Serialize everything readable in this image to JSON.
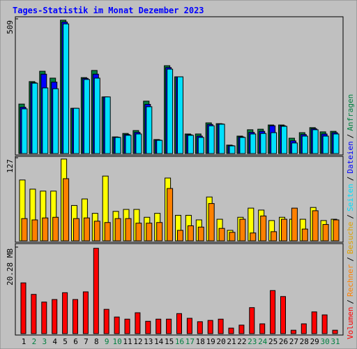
{
  "chart_data": [
    {
      "type": "bar",
      "title": "Tages-Statistik im Monat Dezember 2023",
      "categories": [
        "1",
        "2",
        "3",
        "4",
        "5",
        "6",
        "7",
        "8",
        "9",
        "10",
        "11",
        "12",
        "13",
        "14",
        "15",
        "16",
        "17",
        "18",
        "19",
        "20",
        "21",
        "22",
        "23",
        "24",
        "25",
        "26",
        "27",
        "28",
        "29",
        "30",
        "31"
      ],
      "category_colors": [
        "#000000",
        "#008040",
        "#008040",
        "#000000",
        "#000000",
        "#000000",
        "#000000",
        "#000000",
        "#008040",
        "#008040",
        "#000000",
        "#000000",
        "#000000",
        "#000000",
        "#000000",
        "#008040",
        "#008040",
        "#000000",
        "#000000",
        "#000000",
        "#000000",
        "#000000",
        "#008040",
        "#008040",
        "#000000",
        "#000000",
        "#000000",
        "#000000",
        "#000000",
        "#008040",
        "#008040"
      ],
      "ylim": [
        0,
        509
      ],
      "yticks": [
        509
      ],
      "series": [
        {
          "name": "Anfragen",
          "color": "#008040",
          "values": [
            187,
            272,
            311,
            285,
            504,
            171,
            287,
            314,
            214,
            63,
            76,
            87,
            198,
            53,
            332,
            290,
            74,
            74,
            116,
            113,
            32,
            66,
            90,
            92,
            108,
            108,
            58,
            79,
            98,
            82,
            84
          ]
        },
        {
          "name": "Dateien",
          "color": "#0000ff",
          "values": [
            175,
            268,
            300,
            270,
            497,
            171,
            284,
            300,
            214,
            62,
            72,
            80,
            186,
            51,
            325,
            290,
            71,
            66,
            110,
            112,
            30,
            63,
            80,
            84,
            105,
            105,
            48,
            72,
            94,
            74,
            79
          ]
        },
        {
          "name": "Seiten",
          "color": "#00e0ff",
          "values": [
            169,
            266,
            248,
            245,
            490,
            171,
            280,
            285,
            214,
            61,
            69,
            74,
            177,
            50,
            319,
            290,
            69,
            61,
            105,
            111,
            29,
            61,
            74,
            76,
            79,
            103,
            40,
            66,
            90,
            66,
            74
          ]
        }
      ]
    },
    {
      "type": "bar",
      "ylim": [
        0,
        127
      ],
      "yticks": [
        127
      ],
      "series": [
        {
          "name": "Besuche",
          "color": "#ffff00",
          "values": [
            93,
            79,
            76,
            76,
            125,
            54,
            64,
            42,
            99,
            45,
            48,
            48,
            36,
            42,
            96,
            39,
            39,
            32,
            67,
            33,
            16,
            36,
            50,
            47,
            31,
            36,
            33,
            33,
            51,
            31,
            33
          ]
        },
        {
          "name": "Rechner",
          "color": "#ff8000",
          "values": [
            34,
            32,
            35,
            36,
            95,
            34,
            35,
            30,
            28,
            34,
            34,
            27,
            27,
            28,
            80,
            16,
            23,
            21,
            57,
            19,
            13,
            33,
            12,
            38,
            14,
            33,
            50,
            18,
            46,
            25,
            32
          ]
        }
      ]
    },
    {
      "type": "bar",
      "ylim": [
        0,
        20.28
      ],
      "yticks": [
        {
          "value": 20.28,
          "label": "20.28 MB"
        }
      ],
      "series": [
        {
          "name": "Volumen",
          "color": "#ff0000",
          "values": [
            11.9,
            9.2,
            7.4,
            8.0,
            9.6,
            8.0,
            9.8,
            20.0,
            5.7,
            3.9,
            3.4,
            4.9,
            2.9,
            3.4,
            3.4,
            4.7,
            3.6,
            2.8,
            3.1,
            3.4,
            1.3,
            2.0,
            6.1,
            2.3,
            10.1,
            8.7,
            0.8,
            2.3,
            5.1,
            4.4,
            0.8
          ]
        }
      ]
    }
  ],
  "legend_separator": "/"
}
